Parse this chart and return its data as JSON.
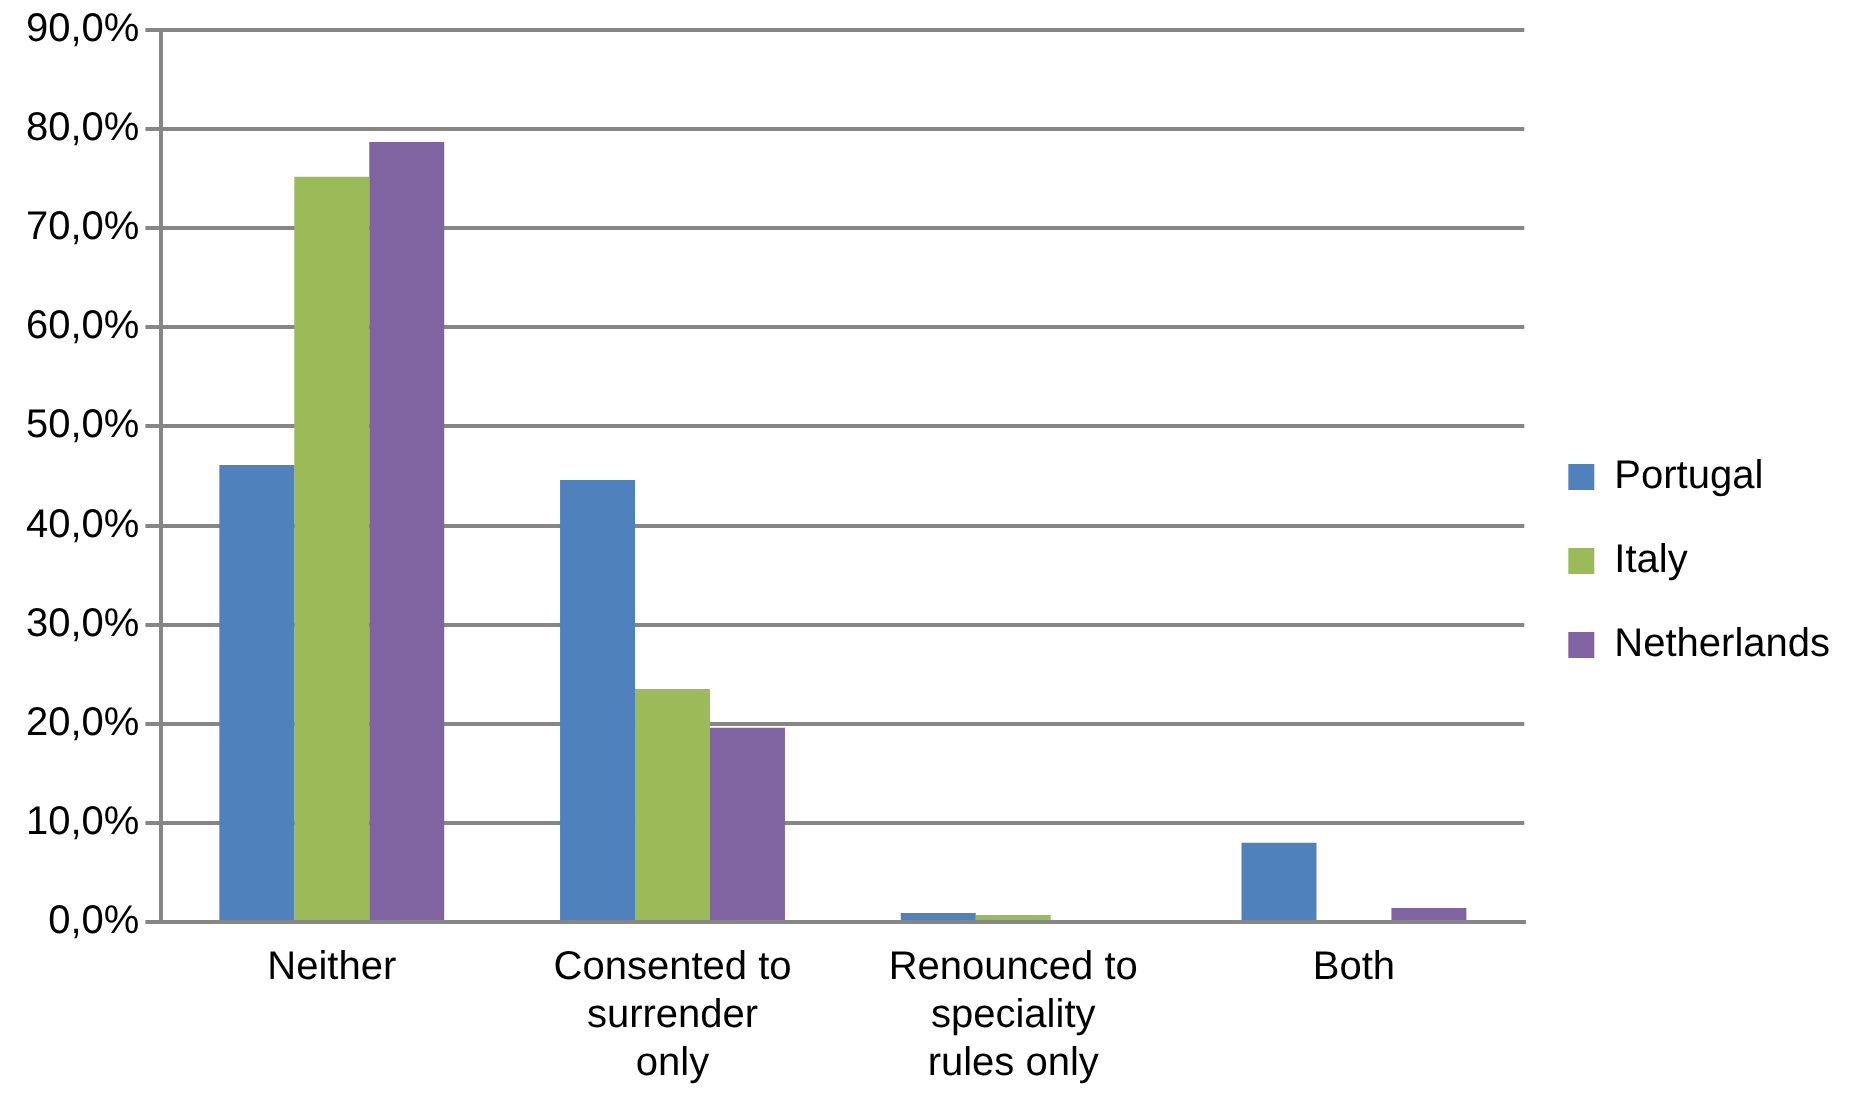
{
  "chart_data": {
    "type": "bar",
    "categories": [
      "Neither",
      "Consented to surrender only",
      "Renounced to speciality rules only",
      "Both"
    ],
    "series": [
      {
        "name": "Portugal",
        "color": "#4f81bd",
        "values": [
          46.1,
          44.6,
          0.9,
          8.0
        ]
      },
      {
        "name": "Italy",
        "color": "#9bbb59",
        "values": [
          75.2,
          23.5,
          0.7,
          0
        ]
      },
      {
        "name": "Netherlands",
        "color": "#8064a2",
        "values": [
          78.7,
          19.6,
          0,
          1.4
        ]
      }
    ],
    "ylim": [
      0,
      90
    ],
    "yticks": [
      {
        "value": 0,
        "label": "0,0%"
      },
      {
        "value": 10,
        "label": "10,0%"
      },
      {
        "value": 20,
        "label": "20,0%"
      },
      {
        "value": 30,
        "label": "30,0%"
      },
      {
        "value": 40,
        "label": "40,0%"
      },
      {
        "value": 50,
        "label": "50,0%"
      },
      {
        "value": 60,
        "label": "60,0%"
      },
      {
        "value": 70,
        "label": "70,0%"
      },
      {
        "value": 80,
        "label": "80,0%"
      },
      {
        "value": 90,
        "label": "90,0%"
      }
    ],
    "grid": "y",
    "legend": "right"
  }
}
